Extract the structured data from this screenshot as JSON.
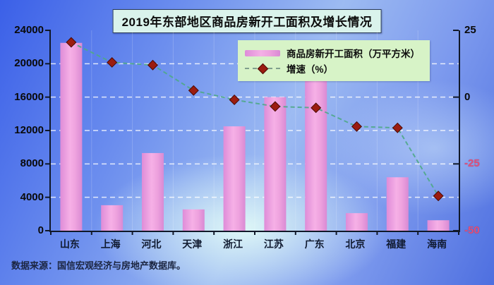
{
  "title": "2019年东部地区商品房新开工面积及增长情况",
  "source_note": "数据来源：国信宏观经济与房地产数据库。",
  "legend": {
    "bar_label": "商品房新开工面积（万平方米）",
    "line_label": "增速（%）"
  },
  "colors": {
    "bar_fill_main": "#f0a2e0",
    "bar_fill_edge": "#dd8ed8",
    "line": "#4fa888",
    "marker": "#9b1c10",
    "gridline": "#ffffff",
    "axis_line": "#101828",
    "negative_tick_label": "#e0507c",
    "title_bg": "#daf3ec",
    "legend_bg": "#d7f3c7"
  },
  "chart_data": {
    "type": "bar",
    "subtype": "bar+line combo, dual axis",
    "title": "2019年东部地区商品房新开工面积及增长情况",
    "categories": [
      "山东",
      "上海",
      "河北",
      "天津",
      "浙江",
      "江苏",
      "广东",
      "北京",
      "福建",
      "海南"
    ],
    "series": [
      {
        "name": "商品房新开工面积（万平方米）",
        "type": "bar",
        "axis": "left",
        "values": [
          22500,
          3050,
          9300,
          2550,
          12500,
          16000,
          18200,
          2100,
          6400,
          1250
        ]
      },
      {
        "name": "增速（%）",
        "type": "line",
        "axis": "right",
        "style": "dashed with diamond markers",
        "values": [
          20.5,
          13,
          12,
          2.5,
          -1,
          -3.5,
          -4,
          -11,
          -11.5,
          -37
        ]
      }
    ],
    "left_axis": {
      "min": 0,
      "max": 24000,
      "step": 4000,
      "ticks": [
        24000,
        20000,
        16000,
        12000,
        8000,
        4000,
        0
      ]
    },
    "right_axis": {
      "min": -50,
      "max": 25,
      "step": 25,
      "ticks": [
        25,
        0,
        -25,
        -50
      ]
    },
    "grid": "horizontal dashed white lines at each left-axis step, faint vertical category separators",
    "legend_position": "top-right inside plot",
    "source": "数据来源：国信宏观经济与房地产数据库。"
  }
}
